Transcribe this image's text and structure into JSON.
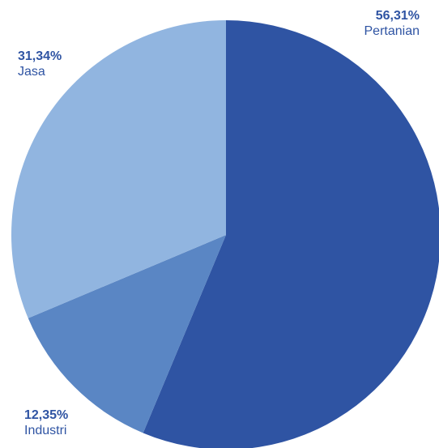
{
  "chart_data": {
    "type": "pie",
    "title": "",
    "start_angle_deg": 0,
    "direction": "clockwise",
    "slices": [
      {
        "label": "Pertanian",
        "value": 56.31,
        "value_label": "56,31%",
        "color": "#2f54a3"
      },
      {
        "label": "Industri",
        "value": 12.35,
        "value_label": "12,35%",
        "color": "#5a86c4"
      },
      {
        "label": "Jasa",
        "value": 31.34,
        "value_label": "31,34%",
        "color": "#91b5e0"
      }
    ],
    "label_color": "#2f54a3"
  }
}
